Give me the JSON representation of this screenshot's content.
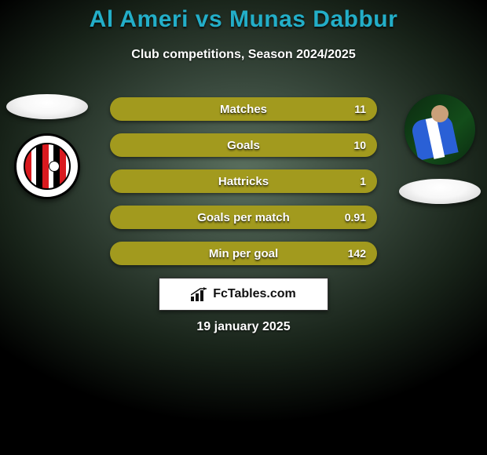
{
  "title": "Al Ameri vs Munas Dabbur",
  "subtitle": "Club competitions, Season 2024/2025",
  "date": "19 january 2025",
  "brand": "FcTables.com",
  "colors": {
    "title": "#23aec8",
    "text_white": "#ffffff",
    "olive": "#a29a1e",
    "teal": "#0f7a7f",
    "disc": "#ffffff",
    "bg_dark": "#000000"
  },
  "bar_style": {
    "height": 30,
    "radius": 15,
    "label_fontsize": 15,
    "value_fontsize": 14,
    "border_width": 2,
    "gap": 16
  },
  "stats": [
    {
      "label": "Matches",
      "left_pct": 2,
      "right_pct": 98,
      "left_val": "",
      "right_val": "11",
      "left_color": "#a29a1e",
      "right_color": "#0f7a7f"
    },
    {
      "label": "Goals",
      "left_pct": 2,
      "right_pct": 98,
      "left_val": "",
      "right_val": "10",
      "left_color": "#a29a1e",
      "right_color": "#0f7a7f"
    },
    {
      "label": "Hattricks",
      "left_pct": 2,
      "right_pct": 98,
      "left_val": "",
      "right_val": "1",
      "left_color": "#a29a1e",
      "right_color": "#0f7a7f"
    },
    {
      "label": "Goals per match",
      "left_pct": 2,
      "right_pct": 98,
      "left_val": "",
      "right_val": "0.91",
      "left_color": "#a29a1e",
      "right_color": "#0f7a7f"
    },
    {
      "label": "Min per goal",
      "left_pct": 2,
      "right_pct": 98,
      "left_val": "",
      "right_val": "142",
      "left_color": "#a29a1e",
      "right_color": "#0f7a7f"
    }
  ],
  "left": {
    "disc": true,
    "badge_name": "al-jazira-club-badge"
  },
  "right": {
    "photo_name": "munas-dabbur-photo",
    "disc": true
  }
}
